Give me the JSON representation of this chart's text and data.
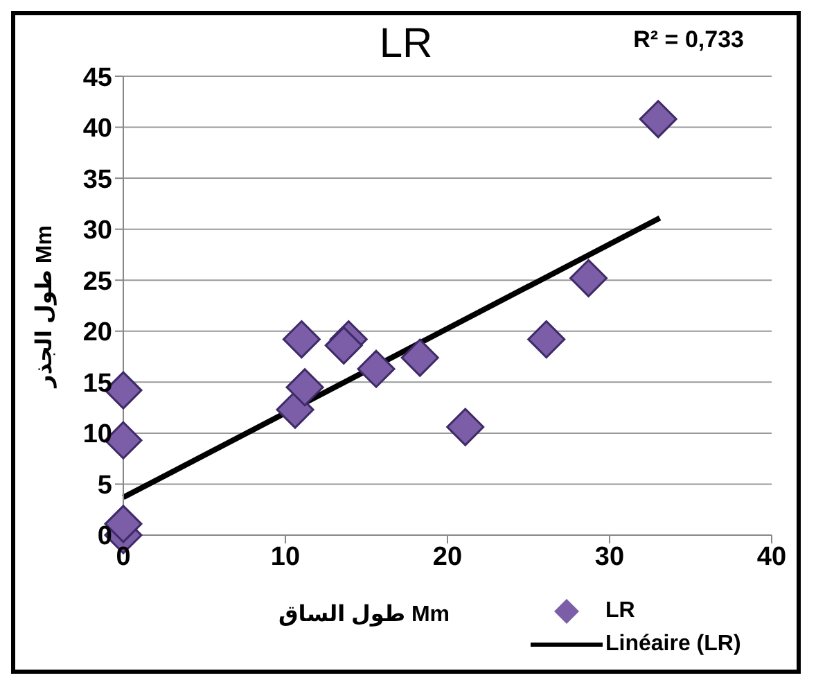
{
  "chart_data": {
    "type": "scatter",
    "title": "LR",
    "xlabel": "طول الساق Mm",
    "ylabel": "طول الجذر Mm",
    "annotations": [
      "R² = 0,733"
    ],
    "xlim": [
      0,
      40
    ],
    "xticks": [
      0,
      10,
      20,
      30,
      40
    ],
    "ylim": [
      0,
      45
    ],
    "yticks": [
      0,
      5,
      10,
      15,
      20,
      25,
      30,
      35,
      40,
      45
    ],
    "grid": "y",
    "legend": "bottom right",
    "marker": "diamond",
    "series": [
      {
        "name": "LR",
        "color": "#7b5ea7",
        "x": [
          0,
          0,
          0,
          0,
          11.0,
          10.6,
          11.2,
          13.9,
          13.6,
          15.6,
          18.3,
          21.1,
          26.1,
          28.7,
          33.0
        ],
        "values": [
          0,
          1.1,
          9.3,
          14.2,
          19.2,
          12.3,
          14.5,
          19.2,
          18.6,
          16.3,
          17.4,
          10.6,
          19.2,
          25.2,
          40.8
        ]
      },
      {
        "name": "Linéaire (LR)",
        "type": "line",
        "marker": "none",
        "color": "#000000",
        "x": [
          0,
          33.1
        ],
        "values": [
          3.7,
          31.1
        ]
      }
    ]
  }
}
